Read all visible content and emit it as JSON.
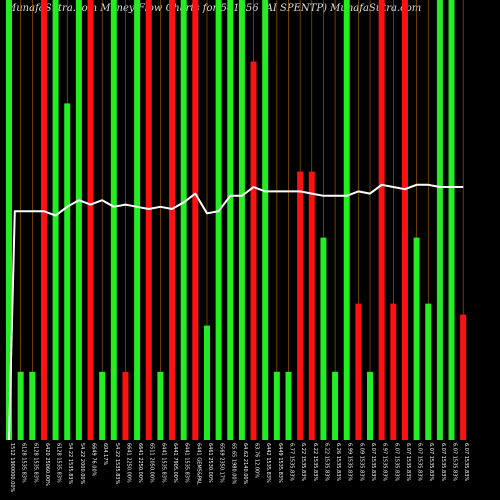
{
  "title": "MunafaSutra.com  Money Flow  Charts for 541956  (AI SPENTP) MunafaSutra.com",
  "chart_data": {
    "type": "bar",
    "ylim": [
      0,
      100
    ],
    "grid": "vertical",
    "colors": {
      "up": "#22ee22",
      "down": "#ff1111",
      "line": "#ffffff",
      "grid": "#b06a00",
      "background": "#000000"
    },
    "bars": [
      {
        "label": "1512 1900000.00%",
        "value": 100,
        "color": "up"
      },
      {
        "label": "6128 1535.83%",
        "value": 15.5,
        "color": "up"
      },
      {
        "label": "6128 1535.83%",
        "value": 15.5,
        "color": "up"
      },
      {
        "label": "6420 25060.00%",
        "value": 100,
        "color": "down"
      },
      {
        "label": "6128 1535.83%",
        "value": 100,
        "color": "up"
      },
      {
        "label": "54.22 1535.83%",
        "value": 76.5,
        "color": "up"
      },
      {
        "label": "54.22 2000.00%",
        "value": 100,
        "color": "up"
      },
      {
        "label": "6649 76.00%",
        "value": 100,
        "color": "down"
      },
      {
        "label": "604.17%",
        "value": 15.5,
        "color": "up"
      },
      {
        "label": "54.22 1535.83%",
        "value": 100,
        "color": "up"
      },
      {
        "label": "6641 2250.00%",
        "value": 15.5,
        "color": "down"
      },
      {
        "label": "6641 2250.00%",
        "value": 100,
        "color": "up"
      },
      {
        "label": "6511 2050.00%",
        "value": 100,
        "color": "down"
      },
      {
        "label": "6441 1535.83%",
        "value": 15.5,
        "color": "up"
      },
      {
        "label": "6441 7905.00%",
        "value": 100,
        "color": "down"
      },
      {
        "label": "6441 1535.83%",
        "value": 100,
        "color": "up"
      },
      {
        "label": "6441 GEMS&PAL",
        "value": 100,
        "color": "down"
      },
      {
        "label": "6461 2530.00%",
        "value": 26,
        "color": "up"
      },
      {
        "label": "6569 2350.17%",
        "value": 100,
        "color": "up"
      },
      {
        "label": "65.65 1980.00%",
        "value": 100,
        "color": "up"
      },
      {
        "label": "64.62 2140.00%",
        "value": 100,
        "color": "up"
      },
      {
        "label": "63.76 12.00%",
        "value": 86,
        "color": "down"
      },
      {
        "label": "6442 1535.83%",
        "value": 100,
        "color": "up"
      },
      {
        "label": "6449 1535.83%",
        "value": 15.5,
        "color": "up"
      },
      {
        "label": "6.77 1535.83%",
        "value": 15.5,
        "color": "up"
      },
      {
        "label": "6.22 1535.83%",
        "value": 61,
        "color": "down"
      },
      {
        "label": "6.22 1535.83%",
        "value": 61,
        "color": "down"
      },
      {
        "label": "6.22 1535.83%",
        "value": 46,
        "color": "up"
      },
      {
        "label": "6.26 1535.83%",
        "value": 15.5,
        "color": "up"
      },
      {
        "label": "6.99 1535.83%",
        "value": 100,
        "color": "up"
      },
      {
        "label": "6.09 1535.83%",
        "value": 31,
        "color": "down"
      },
      {
        "label": "6.07 1535.83%",
        "value": 15.5,
        "color": "up"
      },
      {
        "label": "6.97 1535.83%",
        "value": 100,
        "color": "down"
      },
      {
        "label": "6.07 1535.83%",
        "value": 31,
        "color": "down"
      },
      {
        "label": "6.07 1535.83%",
        "value": 100,
        "color": "down"
      },
      {
        "label": "6.07 1535.83%",
        "value": 46,
        "color": "up"
      },
      {
        "label": "6.07 1535.83%",
        "value": 31,
        "color": "up"
      },
      {
        "label": "6.07 1535.83%",
        "value": 100,
        "color": "up"
      },
      {
        "label": "6.07 1535.83%",
        "value": 100,
        "color": "up"
      },
      {
        "label": "6.07 1535.83%",
        "value": 28.5,
        "color": "down"
      }
    ],
    "line": [
      {
        "x": 0,
        "y": 0
      },
      {
        "x": 0.5,
        "y": 52
      },
      {
        "x": 1,
        "y": 52
      },
      {
        "x": 2,
        "y": 52
      },
      {
        "x": 3,
        "y": 52
      },
      {
        "x": 4,
        "y": 51
      },
      {
        "x": 5,
        "y": 53
      },
      {
        "x": 6,
        "y": 54.5
      },
      {
        "x": 7,
        "y": 53.5
      },
      {
        "x": 8,
        "y": 54.5
      },
      {
        "x": 9,
        "y": 53
      },
      {
        "x": 10,
        "y": 53.5
      },
      {
        "x": 11,
        "y": 53
      },
      {
        "x": 12,
        "y": 52.5
      },
      {
        "x": 13,
        "y": 53
      },
      {
        "x": 14,
        "y": 52.5
      },
      {
        "x": 15,
        "y": 54
      },
      {
        "x": 16,
        "y": 56
      },
      {
        "x": 17,
        "y": 51.5
      },
      {
        "x": 18,
        "y": 52
      },
      {
        "x": 19,
        "y": 55.5
      },
      {
        "x": 20,
        "y": 55.5
      },
      {
        "x": 21,
        "y": 57.5
      },
      {
        "x": 22,
        "y": 56.5
      },
      {
        "x": 23,
        "y": 56.5
      },
      {
        "x": 24,
        "y": 56.5
      },
      {
        "x": 25,
        "y": 56.5
      },
      {
        "x": 26,
        "y": 56
      },
      {
        "x": 27,
        "y": 55.5
      },
      {
        "x": 28,
        "y": 55.5
      },
      {
        "x": 29,
        "y": 55.5
      },
      {
        "x": 30,
        "y": 56.5
      },
      {
        "x": 31,
        "y": 56
      },
      {
        "x": 32,
        "y": 58
      },
      {
        "x": 33,
        "y": 57.5
      },
      {
        "x": 34,
        "y": 57
      },
      {
        "x": 35,
        "y": 58
      },
      {
        "x": 36,
        "y": 58
      },
      {
        "x": 37,
        "y": 57.5
      },
      {
        "x": 38,
        "y": 57.5
      },
      {
        "x": 39,
        "y": 57.5
      }
    ]
  }
}
